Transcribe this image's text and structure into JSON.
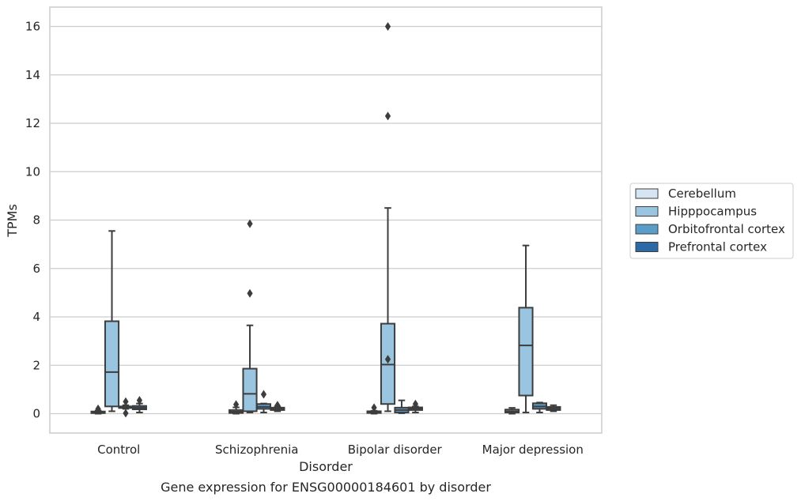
{
  "chart_data": {
    "type": "box",
    "title": "",
    "caption": "Gene expression for ENSG00000184601 by disorder",
    "xlabel": "Disorder",
    "ylabel": "TPMs",
    "ylim": [
      -0.8,
      16.8
    ],
    "yticks": [
      0,
      2,
      4,
      6,
      8,
      10,
      12,
      14,
      16
    ],
    "grid": "horizontal",
    "legend_position": "right",
    "categories": [
      "Control",
      "Schizophrenia",
      "Bipolar disorder",
      "Major depression"
    ],
    "series": [
      {
        "name": "Cerebellum",
        "color": "#d6e5f3",
        "boxes": [
          {
            "category": "Control",
            "whisker_low": 0.0,
            "q1": 0.03,
            "median": 0.06,
            "q3": 0.09,
            "whisker_high": 0.13,
            "outliers": [
              0.2
            ]
          },
          {
            "category": "Schizophrenia",
            "whisker_low": 0.0,
            "q1": 0.03,
            "median": 0.08,
            "q3": 0.15,
            "whisker_high": 0.26,
            "outliers": [
              0.38
            ]
          },
          {
            "category": "Bipolar disorder",
            "whisker_low": 0.0,
            "q1": 0.03,
            "median": 0.06,
            "q3": 0.1,
            "whisker_high": 0.12,
            "outliers": [
              0.25
            ]
          },
          {
            "category": "Major depression",
            "whisker_low": 0.0,
            "q1": 0.05,
            "median": 0.1,
            "q3": 0.17,
            "whisker_high": 0.24,
            "outliers": []
          }
        ]
      },
      {
        "name": "Hipppocampus",
        "color": "#9ac5e0",
        "boxes": [
          {
            "category": "Control",
            "whisker_low": 0.1,
            "q1": 0.3,
            "median": 1.72,
            "q3": 3.82,
            "whisker_high": 7.55,
            "outliers": []
          },
          {
            "category": "Schizophrenia",
            "whisker_low": 0.05,
            "q1": 0.1,
            "median": 0.82,
            "q3": 1.86,
            "whisker_high": 3.65,
            "outliers": [
              4.97,
              7.85
            ]
          },
          {
            "category": "Bipolar disorder",
            "whisker_low": 0.1,
            "q1": 0.4,
            "median": 2.03,
            "q3": 3.72,
            "whisker_high": 8.5,
            "outliers": [
              2.25,
              12.3,
              16.0
            ]
          },
          {
            "category": "Major depression",
            "whisker_low": 0.05,
            "q1": 0.75,
            "median": 2.82,
            "q3": 4.38,
            "whisker_high": 6.95,
            "outliers": []
          }
        ]
      },
      {
        "name": "Orbitofrontal cortex",
        "color": "#5b9cc8",
        "boxes": [
          {
            "category": "Control",
            "whisker_low": 0.2,
            "q1": 0.24,
            "median": 0.27,
            "q3": 0.3,
            "whisker_high": 0.35,
            "outliers": [
              0.02,
              0.5
            ]
          },
          {
            "category": "Schizophrenia",
            "whisker_low": 0.05,
            "q1": 0.2,
            "median": 0.28,
            "q3": 0.4,
            "whisker_high": 0.42,
            "outliers": [
              0.8
            ]
          },
          {
            "category": "Bipolar disorder",
            "whisker_low": 0.02,
            "q1": 0.05,
            "median": 0.15,
            "q3": 0.25,
            "whisker_high": 0.55,
            "outliers": []
          },
          {
            "category": "Major depression",
            "whisker_low": 0.05,
            "q1": 0.2,
            "median": 0.3,
            "q3": 0.43,
            "whisker_high": 0.46,
            "outliers": []
          }
        ]
      },
      {
        "name": "Prefrontal cortex",
        "color": "#2b6aa6",
        "boxes": [
          {
            "category": "Control",
            "whisker_low": 0.05,
            "q1": 0.18,
            "median": 0.24,
            "q3": 0.32,
            "whisker_high": 0.42,
            "outliers": [
              0.55
            ]
          },
          {
            "category": "Schizophrenia",
            "whisker_low": 0.1,
            "q1": 0.15,
            "median": 0.2,
            "q3": 0.25,
            "whisker_high": 0.3,
            "outliers": [
              0.35
            ]
          },
          {
            "category": "Bipolar disorder",
            "whisker_low": 0.05,
            "q1": 0.15,
            "median": 0.2,
            "q3": 0.26,
            "whisker_high": 0.3,
            "outliers": [
              0.4
            ]
          },
          {
            "category": "Major depression",
            "whisker_low": 0.1,
            "q1": 0.15,
            "median": 0.22,
            "q3": 0.28,
            "whisker_high": 0.35,
            "outliers": []
          }
        ]
      }
    ]
  }
}
